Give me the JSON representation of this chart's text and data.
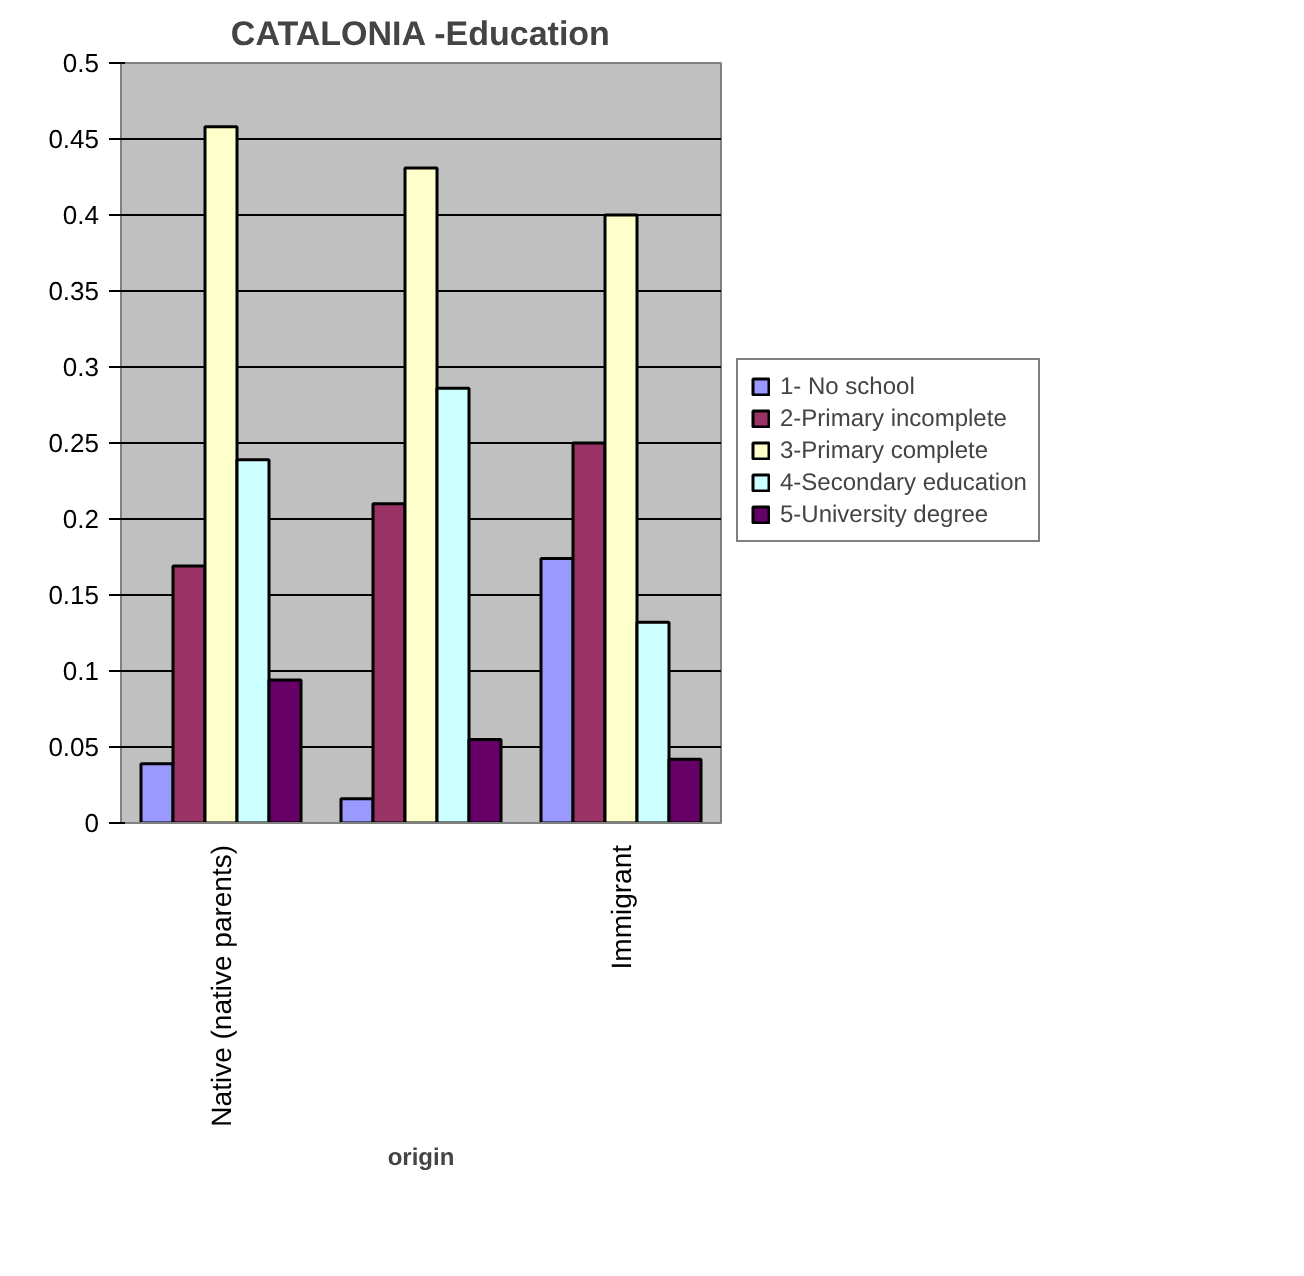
{
  "chart_data": {
    "type": "bar",
    "title": "CATALONIA -Education",
    "xlabel": "origin",
    "categories": [
      "Native (native parents)",
      null,
      "Immigrant"
    ],
    "series": [
      {
        "name": "1- No school",
        "color": "#9999ff",
        "values": [
          0.039,
          0.016,
          0.174
        ]
      },
      {
        "name": "2-Primary incomplete",
        "color": "#993366",
        "values": [
          0.169,
          0.21,
          0.25
        ]
      },
      {
        "name": "3-Primary complete",
        "color": "#ffffcc",
        "values": [
          0.458,
          0.431,
          0.4
        ]
      },
      {
        "name": "4-Secondary education",
        "color": "#ccffff",
        "values": [
          0.239,
          0.286,
          0.132
        ]
      },
      {
        "name": "5-University degree",
        "color": "#660066",
        "values": [
          0.094,
          0.055,
          0.042
        ]
      }
    ],
    "ylim": [
      0,
      0.5
    ],
    "yticks": [
      0,
      0.05,
      0.1,
      0.15,
      0.2,
      0.25,
      0.3,
      0.35,
      0.4,
      0.45,
      0.5
    ],
    "grid": "y",
    "legend": "right"
  }
}
